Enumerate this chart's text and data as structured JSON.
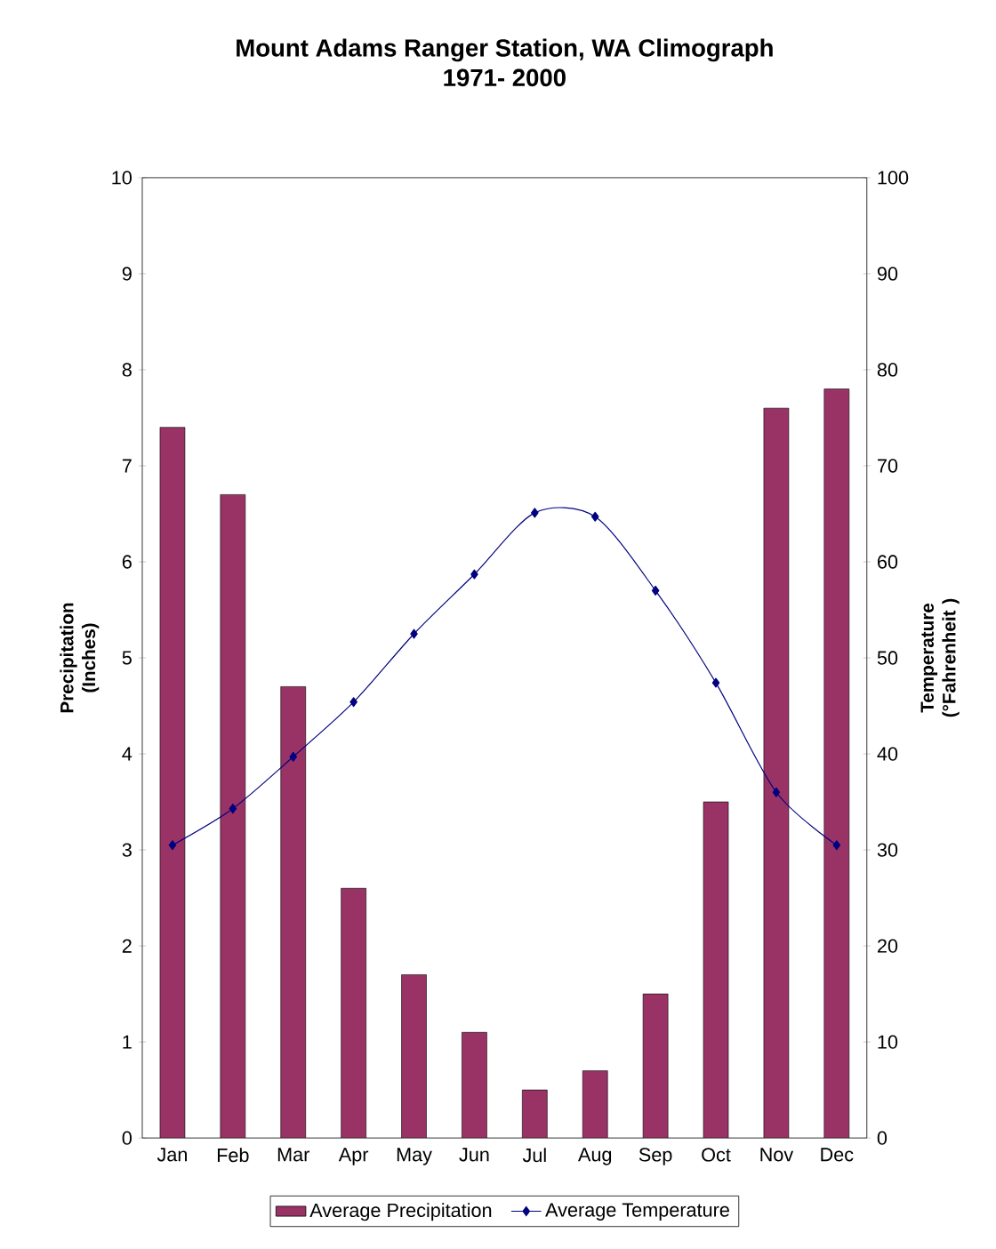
{
  "chart_data": {
    "type": "bar",
    "title": "Mount Adams Ranger Station, WA  Climograph",
    "subtitle": "1971- 2000",
    "ylabel": "Precipitation (Inches)",
    "y2label": "Temperature (°Fahrenheit )",
    "categories": [
      "Jan",
      "Feb",
      "Mar",
      "Apr",
      "May",
      "Jun",
      "Jul",
      "Aug",
      "Sep",
      "Oct",
      "Nov",
      "Dec"
    ],
    "series": [
      {
        "name": "Average Precipitation",
        "color": "#993366",
        "values": [
          7.4,
          6.7,
          4.7,
          2.6,
          1.7,
          1.1,
          0.5,
          0.7,
          1.5,
          3.5,
          7.6,
          7.8
        ]
      },
      {
        "name": "Average Temperature",
        "type": "line",
        "axis": "y2",
        "color": "#000080",
        "values": [
          30.5,
          34.3,
          39.7,
          45.4,
          52.5,
          58.7,
          65.1,
          64.7,
          57.0,
          47.4,
          36.0,
          30.5
        ]
      }
    ],
    "ylim": [
      0,
      10
    ],
    "yticks": [
      0,
      1,
      2,
      3,
      4,
      5,
      6,
      7,
      8,
      9,
      10
    ],
    "y2lim": [
      0,
      100
    ],
    "y2ticks": [
      0,
      10,
      20,
      30,
      40,
      50,
      60,
      70,
      80,
      90,
      100
    ],
    "marker": "diamond",
    "legend": "bottom"
  }
}
